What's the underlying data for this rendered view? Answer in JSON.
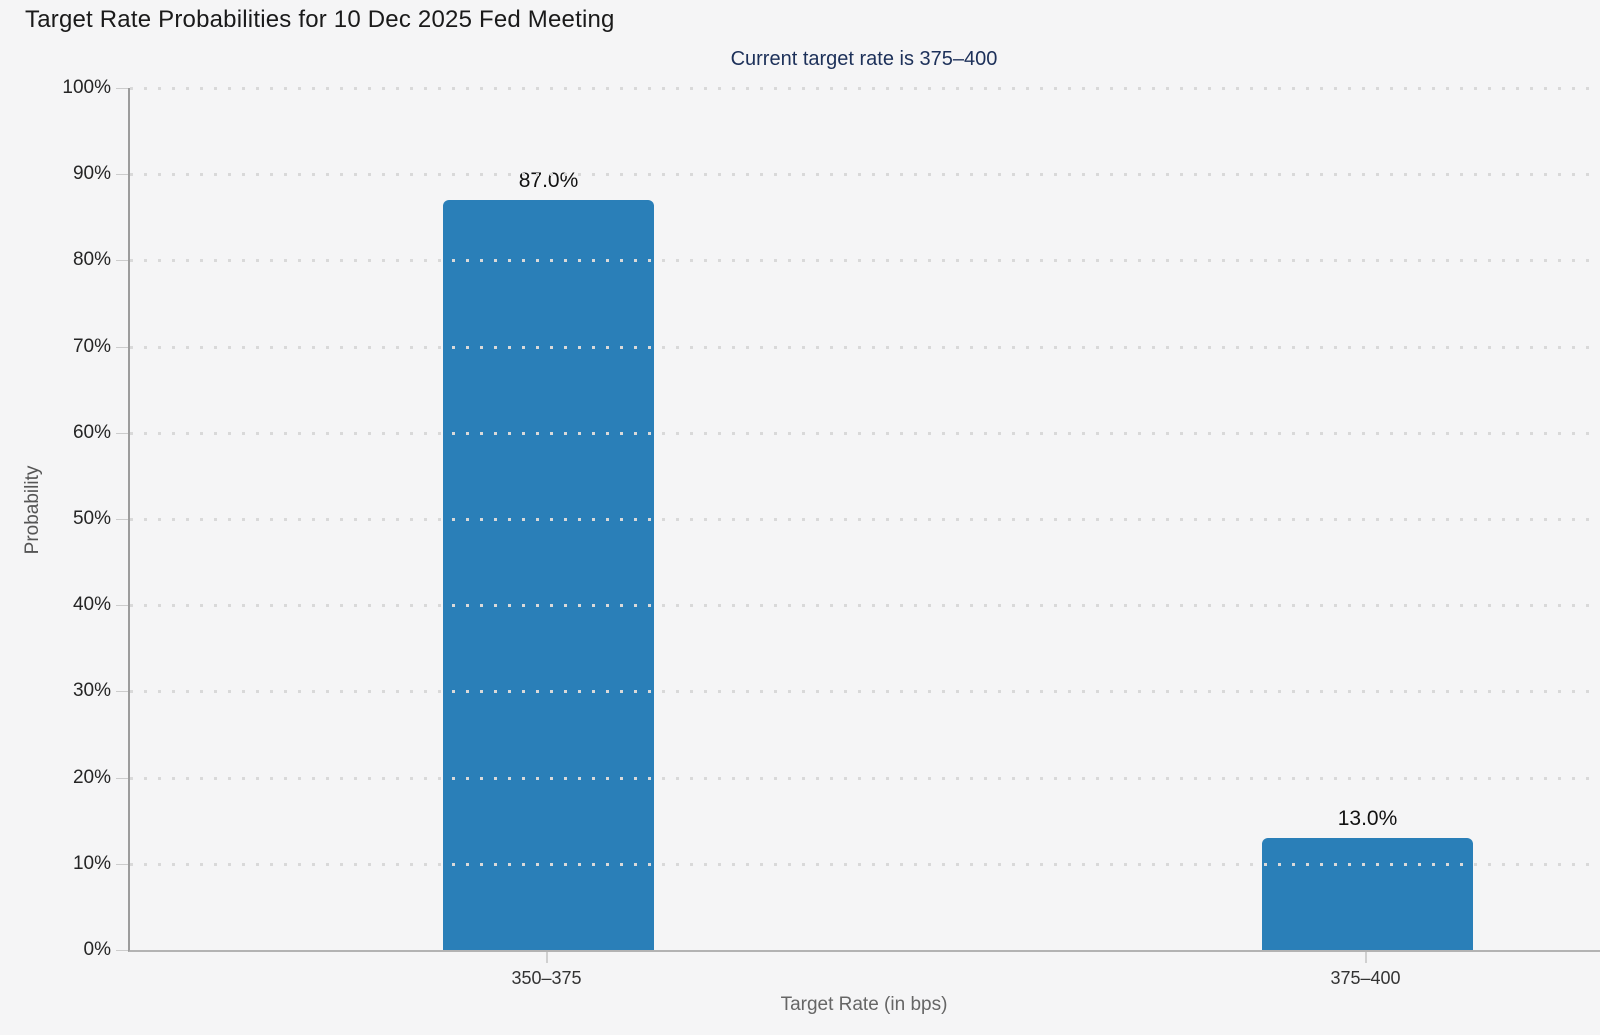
{
  "page": {
    "background": "#f5f5f6"
  },
  "chart_data": {
    "type": "bar",
    "title": "Target Rate Probabilities for 10 Dec 2025 Fed Meeting",
    "subtitle": "Current target rate is 375–400",
    "xlabel": "Target Rate (in bps)",
    "ylabel": "Probability",
    "categories": [
      "350–375",
      "375–400"
    ],
    "values": [
      87.0,
      13.0
    ],
    "value_labels": [
      "87.0%",
      "13.0%"
    ],
    "ylim": [
      0,
      100
    ],
    "yticks": [
      0,
      10,
      20,
      30,
      40,
      50,
      60,
      70,
      80,
      90,
      100
    ],
    "ytick_labels": [
      "0%",
      "10%",
      "20%",
      "30%",
      "40%",
      "50%",
      "60%",
      "70%",
      "80%",
      "90%",
      "100%"
    ],
    "grid": {
      "horizontal": "dotted",
      "color": "#d9d9d9",
      "interval": 10
    },
    "legend": "none",
    "bar_color": "#2a7fb8",
    "subtitle_color": "#1c3059"
  }
}
